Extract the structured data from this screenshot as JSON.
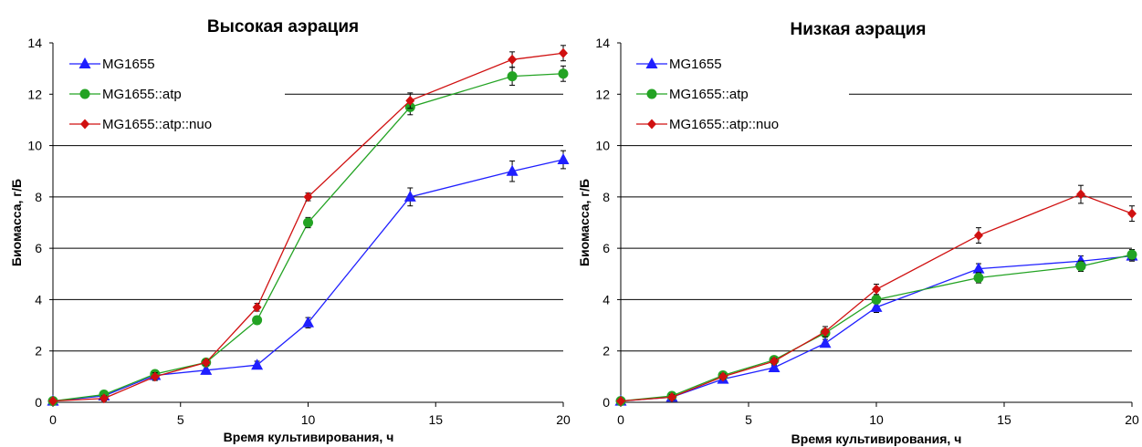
{
  "chart_data": [
    {
      "type": "line",
      "title": "Высокая аэрация",
      "xlabel": "Время культивирования, ч",
      "ylabel": "Биомасса, г/Б",
      "xlim": [
        0,
        20
      ],
      "ylim": [
        0,
        14
      ],
      "xticks": [
        "0",
        "5",
        "10",
        "15",
        "20"
      ],
      "yticks": [
        "0",
        "2",
        "4",
        "6",
        "8",
        "10",
        "12",
        "14"
      ],
      "grid": "horizontal",
      "legend_position": "top-left",
      "series": [
        {
          "name": "MG1655",
          "color": "#1f1fff",
          "marker": "triangle",
          "x": [
            0,
            2,
            4,
            6,
            8,
            10,
            14,
            18,
            20
          ],
          "y": [
            0.05,
            0.25,
            1.05,
            1.25,
            1.45,
            3.1,
            8.0,
            9.0,
            9.45
          ],
          "err": [
            0.05,
            0.1,
            0.1,
            0.15,
            0.15,
            0.2,
            0.35,
            0.4,
            0.35
          ]
        },
        {
          "name": "MG1655::atp",
          "color": "#23a323",
          "marker": "circle",
          "x": [
            0,
            2,
            4,
            6,
            8,
            10,
            14,
            18,
            20
          ],
          "y": [
            0.05,
            0.3,
            1.1,
            1.55,
            3.2,
            7.0,
            11.5,
            12.7,
            12.8
          ],
          "err": [
            0.05,
            0.1,
            0.1,
            0.1,
            0.15,
            0.2,
            0.3,
            0.35,
            0.3
          ]
        },
        {
          "name": "MG1655::atp::nuo",
          "color": "#d01010",
          "marker": "diamond",
          "x": [
            0,
            2,
            4,
            6,
            8,
            10,
            14,
            18,
            20
          ],
          "y": [
            0.05,
            0.15,
            1.0,
            1.55,
            3.7,
            8.0,
            11.75,
            13.35,
            13.6
          ],
          "err": [
            0.05,
            0.1,
            0.15,
            0.1,
            0.15,
            0.15,
            0.3,
            0.3,
            0.3
          ]
        }
      ]
    },
    {
      "type": "line",
      "title": "Низкая аэрация",
      "xlabel": "Время культивирования, ч",
      "ylabel": "Биомасса, г/Б",
      "xlim": [
        0,
        20
      ],
      "ylim": [
        0,
        14
      ],
      "xticks": [
        "0",
        "5",
        "10",
        "15",
        "20"
      ],
      "yticks": [
        "0",
        "2",
        "4",
        "6",
        "8",
        "10",
        "12",
        "14"
      ],
      "grid": "horizontal",
      "legend_position": "top-left",
      "series": [
        {
          "name": "MG1655",
          "color": "#1f1fff",
          "marker": "triangle",
          "x": [
            0,
            2,
            4,
            6,
            8,
            10,
            14,
            18,
            20
          ],
          "y": [
            0.05,
            0.2,
            0.9,
            1.35,
            2.3,
            3.7,
            5.2,
            5.5,
            5.7
          ],
          "err": [
            0.05,
            0.1,
            0.1,
            0.1,
            0.15,
            0.2,
            0.2,
            0.2,
            0.2
          ]
        },
        {
          "name": "MG1655::atp",
          "color": "#23a323",
          "marker": "circle",
          "x": [
            0,
            2,
            4,
            6,
            8,
            10,
            14,
            18,
            20
          ],
          "y": [
            0.05,
            0.25,
            1.05,
            1.65,
            2.7,
            4.0,
            4.85,
            5.3,
            5.75
          ],
          "err": [
            0.05,
            0.1,
            0.1,
            0.1,
            0.15,
            0.15,
            0.2,
            0.2,
            0.2
          ]
        },
        {
          "name": "MG1655::atp::nuo",
          "color": "#d01010",
          "marker": "diamond",
          "x": [
            0,
            2,
            4,
            6,
            8,
            10,
            14,
            18,
            20
          ],
          "y": [
            0.05,
            0.2,
            1.0,
            1.6,
            2.75,
            4.4,
            6.5,
            8.1,
            7.35
          ],
          "err": [
            0.05,
            0.1,
            0.1,
            0.1,
            0.2,
            0.2,
            0.3,
            0.35,
            0.3
          ]
        }
      ]
    }
  ]
}
